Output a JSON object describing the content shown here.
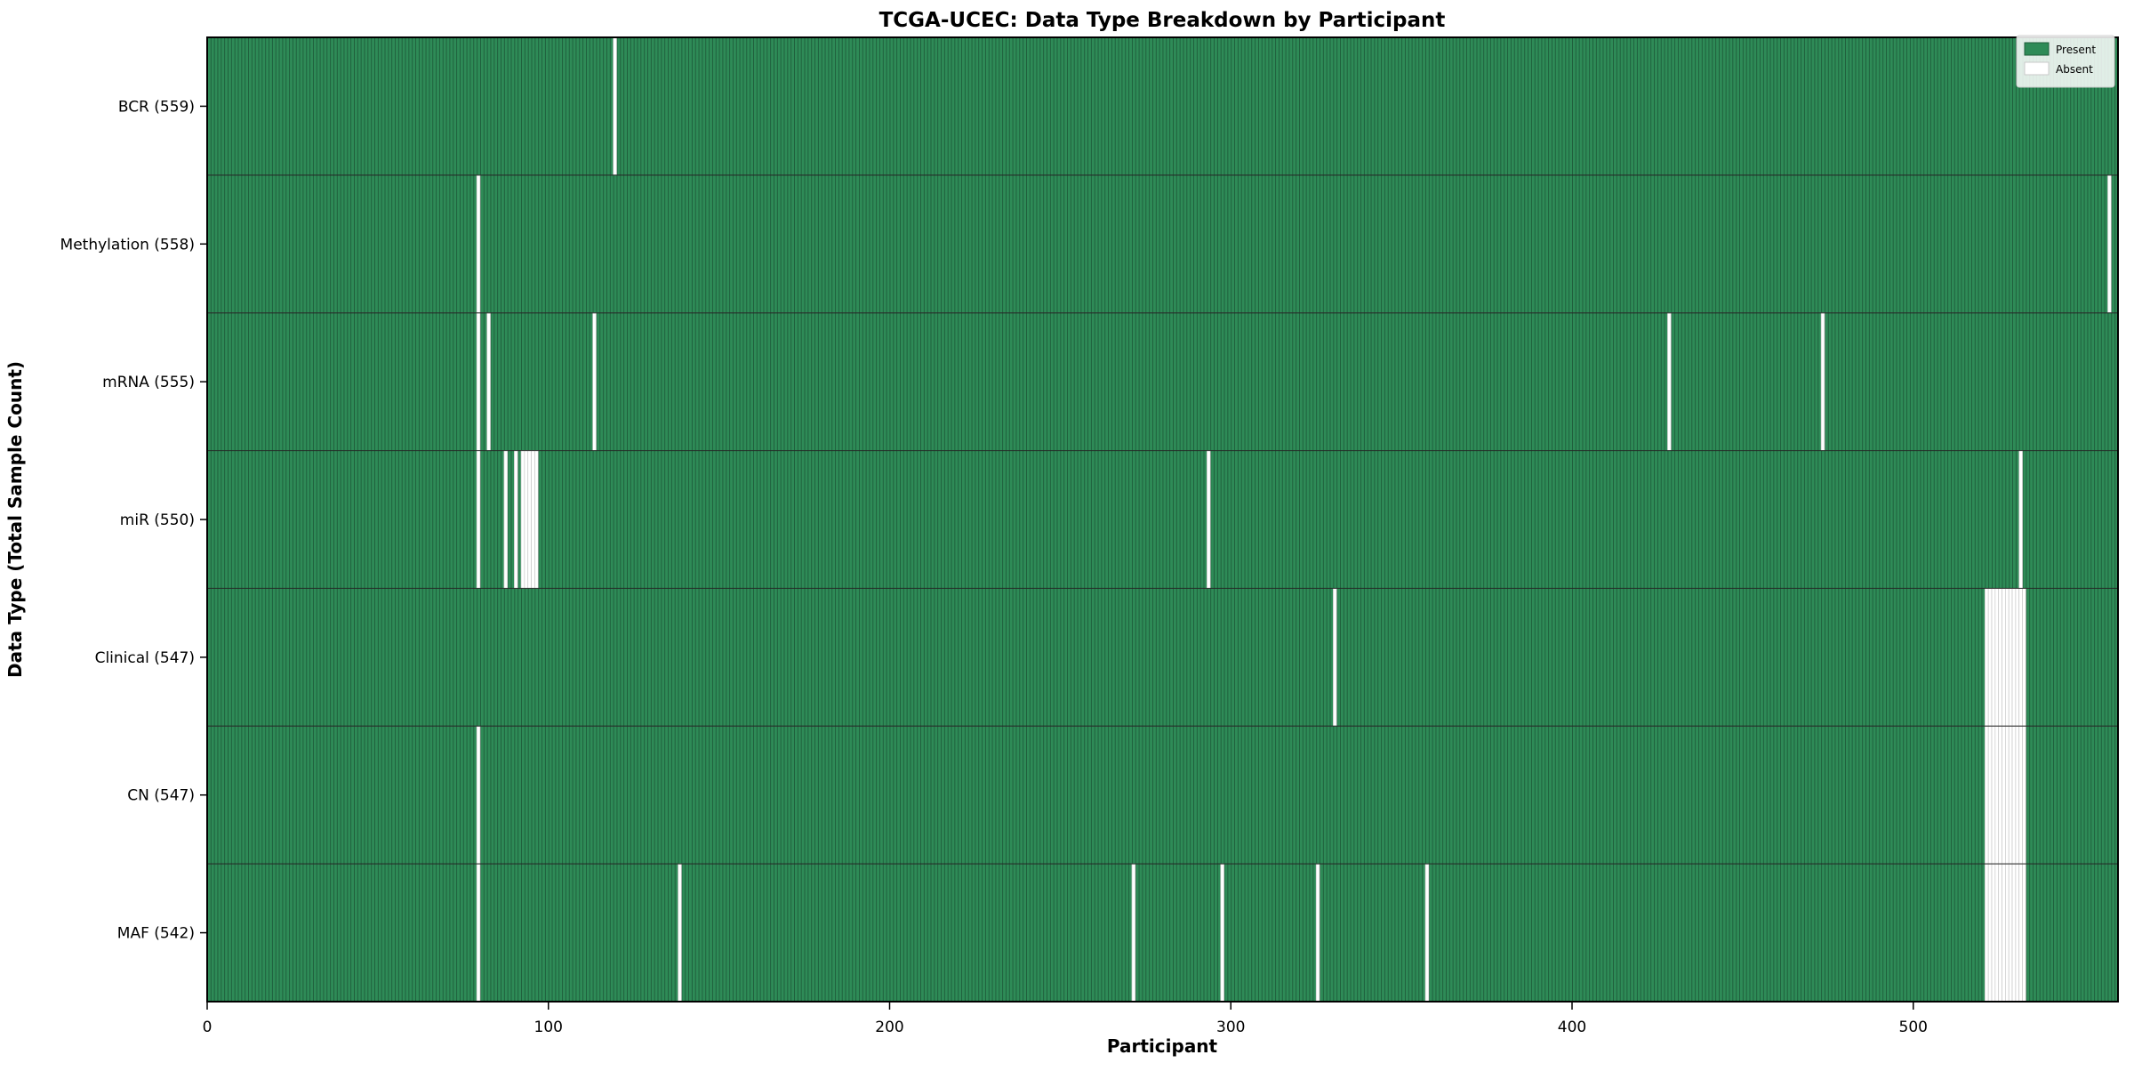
{
  "figure": {
    "background": "#ffffff"
  },
  "chart_data": {
    "type": "heatmap",
    "title": "TCGA-UCEC: Data Type Breakdown by Participant",
    "xlabel": "Participant",
    "ylabel": "Data Type (Total Sample Count)",
    "x_ticks": [
      0,
      100,
      200,
      300,
      400,
      500
    ],
    "xlim": [
      0,
      560
    ],
    "n_participants": 560,
    "grid": false,
    "legend_position": "upper right",
    "legend": [
      {
        "label": "Present",
        "color": "#2e8b57"
      },
      {
        "label": "Absent",
        "color": "#ffffff"
      }
    ],
    "colors": {
      "present": "#2e8b57",
      "present_edge": "#1e5c3a",
      "absent": "#ffffff",
      "absent_edge": "#c8c8c8",
      "row_divider": "#222222",
      "axis": "#000000"
    },
    "rows": [
      {
        "label": "BCR (559)",
        "data_type": "BCR",
        "count": 559,
        "absent_participants": [
          119
        ]
      },
      {
        "label": "Methylation (558)",
        "data_type": "Methylation",
        "count": 558,
        "absent_participants": [
          79,
          557
        ]
      },
      {
        "label": "mRNA (555)",
        "data_type": "mRNA",
        "count": 555,
        "absent_participants": [
          79,
          82,
          113,
          428,
          473
        ]
      },
      {
        "label": "miR (550)",
        "data_type": "miR",
        "count": 550,
        "absent_participants": [
          79,
          87,
          90,
          92,
          93,
          94,
          95,
          96,
          293,
          531
        ]
      },
      {
        "label": "Clinical (547)",
        "data_type": "Clinical",
        "count": 547,
        "absent_participants": [
          330,
          521,
          522,
          523,
          524,
          525,
          526,
          527,
          528,
          529,
          530,
          531,
          532
        ]
      },
      {
        "label": "CN (547)",
        "data_type": "CN",
        "count": 547,
        "absent_participants": [
          79,
          521,
          522,
          523,
          524,
          525,
          526,
          527,
          528,
          529,
          530,
          531,
          532
        ]
      },
      {
        "label": "MAF (542)",
        "data_type": "MAF",
        "count": 542,
        "absent_participants": [
          79,
          138,
          271,
          297,
          325,
          357,
          521,
          522,
          523,
          524,
          525,
          526,
          527,
          528,
          529,
          530,
          531,
          532
        ]
      }
    ]
  }
}
